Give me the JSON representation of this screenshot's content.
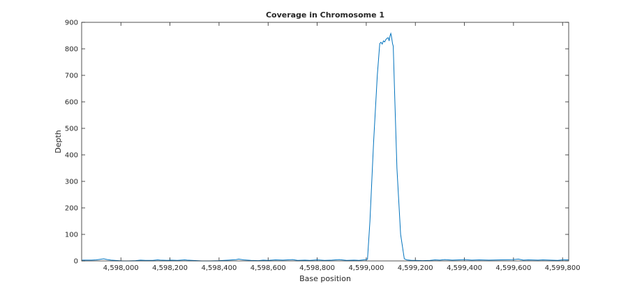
{
  "chart_data": {
    "type": "line",
    "title": "Coverage in Chromosome 1",
    "xlabel": "Base position",
    "ylabel": "Depth",
    "xlim": [
      4597840,
      4599825
    ],
    "ylim": [
      0,
      900
    ],
    "xticks": [
      4598000,
      4598200,
      4598400,
      4598600,
      4598800,
      4599000,
      4599200,
      4599400,
      4599600,
      4599800
    ],
    "xtick_labels": [
      "4,598,000",
      "4,598,200",
      "4,598,400",
      "4,598,600",
      "4,598,800",
      "4,599,000",
      "4,599,200",
      "4,599,400",
      "4,599,600",
      "4,599,800"
    ],
    "yticks": [
      0,
      100,
      200,
      300,
      400,
      500,
      600,
      700,
      800,
      900
    ],
    "ytick_labels": [
      "0",
      "100",
      "200",
      "300",
      "400",
      "500",
      "600",
      "700",
      "800",
      "900"
    ],
    "grid": false,
    "legend": "none",
    "series": [
      {
        "color": "#0072bd",
        "x": [
          4597842,
          4597860,
          4597880,
          4597900,
          4597915,
          4597930,
          4597945,
          4597960,
          4597975,
          4597990,
          4598010,
          4598030,
          4598060,
          4598080,
          4598100,
          4598130,
          4598150,
          4598160,
          4598190,
          4598200,
          4598230,
          4598260,
          4598270,
          4598290,
          4598310,
          4598330,
          4598360,
          4598400,
          4598440,
          4598470,
          4598480,
          4598500,
          4598530,
          4598560,
          4598580,
          4598600,
          4598630,
          4598660,
          4598700,
          4598720,
          4598750,
          4598770,
          4598800,
          4598830,
          4598860,
          4598890,
          4598920,
          4598950,
          4598970,
          4598990,
          4599000,
          4599005,
          4599015,
          4599030,
          4599045,
          4599055,
          4599060,
          4599065,
          4599070,
          4599075,
          4599080,
          4599085,
          4599090,
          4599093,
          4599097,
          4599100,
          4599103,
          4599107,
          4599110,
          4599115,
          4599125,
          4599140,
          4599155,
          4599165,
          4599175,
          4599185,
          4599200,
          4599230,
          4599260,
          4599280,
          4599300,
          4599320,
          4599350,
          4599380,
          4599400,
          4599430,
          4599460,
          4599500,
          4599550,
          4599600,
          4599620,
          4599640,
          4599660,
          4599700,
          4599720,
          4599750,
          4599780,
          4599800,
          4599825
        ],
        "y": [
          3,
          3,
          3,
          4,
          6,
          8,
          5,
          3,
          2,
          1,
          0,
          0,
          1,
          3,
          2,
          2,
          4,
          3,
          2,
          3,
          2,
          4,
          3,
          2,
          1,
          0,
          0,
          1,
          3,
          5,
          7,
          4,
          2,
          1,
          3,
          2,
          4,
          3,
          5,
          2,
          3,
          2,
          4,
          2,
          3,
          5,
          2,
          3,
          2,
          4,
          5,
          6,
          150,
          450,
          700,
          820,
          825,
          818,
          830,
          826,
          835,
          840,
          842,
          830,
          850,
          858,
          845,
          820,
          810,
          650,
          350,
          100,
          8,
          4,
          3,
          2,
          2,
          1,
          2,
          4,
          3,
          5,
          3,
          4,
          5,
          3,
          4,
          3,
          4,
          5,
          7,
          3,
          4,
          3,
          4,
          3,
          2,
          4,
          4
        ]
      }
    ]
  }
}
